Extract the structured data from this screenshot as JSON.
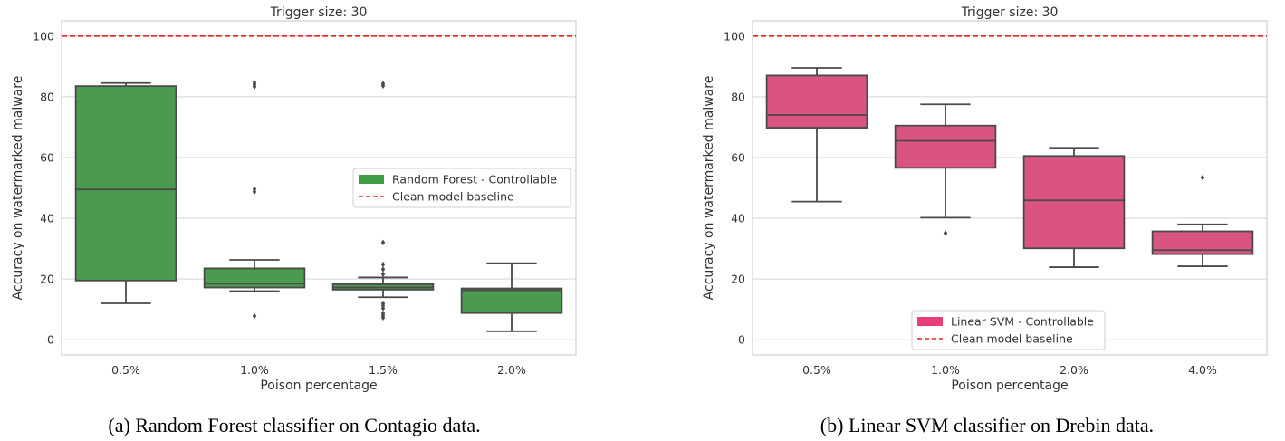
{
  "colors": {
    "rf_box": "#4a9a4f",
    "svm_box": "#d9557f",
    "baseline": "#e8251f",
    "grid": "#d5d5d5",
    "frame": "#c4c4c4",
    "box_line": "#4a4a4a",
    "legend_rf": "#3f9e44",
    "legend_svm": "#ea3f76"
  },
  "captions": {
    "a": "(a) Random Forest classifier on Contagio data.",
    "b": "(b) Linear SVM classifier on Drebin data."
  },
  "chart_data": [
    {
      "type": "box",
      "title": "Trigger size: 30",
      "xlabel": "Poison percentage",
      "ylabel": "Accuracy on watermarked malware",
      "categories": [
        "0.5%",
        "1.0%",
        "1.5%",
        "2.0%"
      ],
      "ylim": [
        -5,
        105
      ],
      "yticks": [
        0,
        20,
        40,
        60,
        80,
        100
      ],
      "grid": true,
      "legend_position": "center-right",
      "legend": [
        "Random Forest - Controllable",
        "Clean model baseline"
      ],
      "baseline": 100,
      "series": [
        {
          "name": "Random Forest - Controllable",
          "color": "#4a9a4f",
          "boxes": [
            {
              "whisker_low": 12,
              "q1": 19.5,
              "median": 49.5,
              "q3": 83.5,
              "whisker_high": 84.5,
              "outliers": []
            },
            {
              "whisker_low": 16,
              "q1": 17.2,
              "median": 18.5,
              "q3": 23.5,
              "whisker_high": 26.3,
              "outliers": [
                7.8,
                48.7,
                49.6,
                83.3,
                84.0,
                84.6
              ]
            },
            {
              "whisker_low": 14,
              "q1": 16.5,
              "median": 17.2,
              "q3": 18.3,
              "whisker_high": 20.5,
              "outliers": [
                7.3,
                8.0,
                8.7,
                10.4,
                11.3,
                12.0,
                21.6,
                23.2,
                24.8,
                32.0,
                83.6,
                84.3
              ]
            },
            {
              "whisker_low": 2.8,
              "q1": 8.8,
              "median": 16.3,
              "q3": 16.9,
              "whisker_high": 25.2,
              "outliers": []
            }
          ]
        }
      ]
    },
    {
      "type": "box",
      "title": "Trigger size: 30",
      "xlabel": "Poison percentage",
      "ylabel": "Accuracy on watermarked malware",
      "categories": [
        "0.5%",
        "1.0%",
        "2.0%",
        "4.0%"
      ],
      "ylim": [
        -5,
        105
      ],
      "yticks": [
        0,
        20,
        40,
        60,
        80,
        100
      ],
      "grid": true,
      "legend_position": "bottom-center",
      "legend": [
        "Linear SVM - Controllable",
        "Clean model baseline"
      ],
      "baseline": 100,
      "series": [
        {
          "name": "Linear SVM - Controllable",
          "color": "#d9557f",
          "boxes": [
            {
              "whisker_low": 45.5,
              "q1": 69.8,
              "median": 74.0,
              "q3": 87.0,
              "whisker_high": 89.5,
              "outliers": []
            },
            {
              "whisker_low": 40.2,
              "q1": 56.6,
              "median": 65.5,
              "q3": 70.5,
              "whisker_high": 77.5,
              "outliers": [
                35.1
              ]
            },
            {
              "whisker_low": 23.9,
              "q1": 30.1,
              "median": 45.9,
              "q3": 60.5,
              "whisker_high": 63.2,
              "outliers": []
            },
            {
              "whisker_low": 24.2,
              "q1": 28.2,
              "median": 29.5,
              "q3": 35.7,
              "whisker_high": 38.0,
              "outliers": [
                53.4
              ]
            }
          ]
        }
      ]
    }
  ]
}
